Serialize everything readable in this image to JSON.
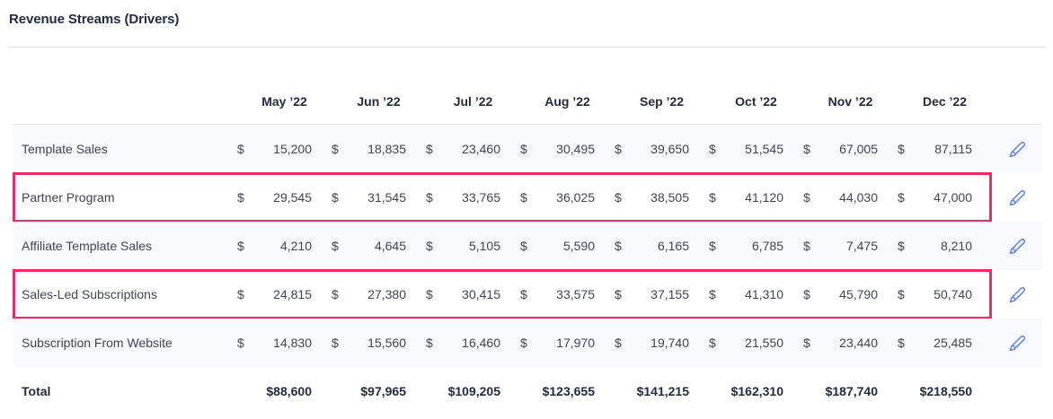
{
  "title": "Revenue Streams (Drivers)",
  "colors": {
    "highlight_border": "#ed2b66",
    "edit_icon_blue": "#6185f2",
    "striped_row_bg": "#f8f9fd",
    "heading_text": "#232a43",
    "body_text": "#3f4458"
  },
  "table": {
    "columns": [
      "May ’22",
      "Jun ’22",
      "Jul ’22",
      "Aug ’22",
      "Sep ’22",
      "Oct ’22",
      "Nov ’22",
      "Dec ’22"
    ],
    "currency_symbol": "$",
    "rows": [
      {
        "label": "Template Sales",
        "highlighted": false,
        "values": [
          "15,200",
          "18,835",
          "23,460",
          "30,495",
          "39,650",
          "51,545",
          "67,005",
          "87,115"
        ]
      },
      {
        "label": "Partner Program",
        "highlighted": true,
        "values": [
          "29,545",
          "31,545",
          "33,765",
          "36,025",
          "38,505",
          "41,120",
          "44,030",
          "47,000"
        ]
      },
      {
        "label": "Affiliate Template Sales",
        "highlighted": false,
        "values": [
          "4,210",
          "4,645",
          "5,105",
          "5,590",
          "6,165",
          "6,785",
          "7,475",
          "8,210"
        ]
      },
      {
        "label": "Sales-Led Subscriptions",
        "highlighted": true,
        "values": [
          "24,815",
          "27,380",
          "30,415",
          "33,575",
          "37,155",
          "41,310",
          "45,790",
          "50,740"
        ]
      },
      {
        "label": "Subscription From Website",
        "highlighted": false,
        "values": [
          "14,830",
          "15,560",
          "16,460",
          "17,970",
          "19,740",
          "21,550",
          "23,440",
          "25,485"
        ]
      }
    ],
    "total": {
      "label": "Total",
      "values": [
        "$88,600",
        "$97,965",
        "$109,205",
        "$123,655",
        "$141,215",
        "$162,310",
        "$187,740",
        "$218,550"
      ]
    }
  }
}
